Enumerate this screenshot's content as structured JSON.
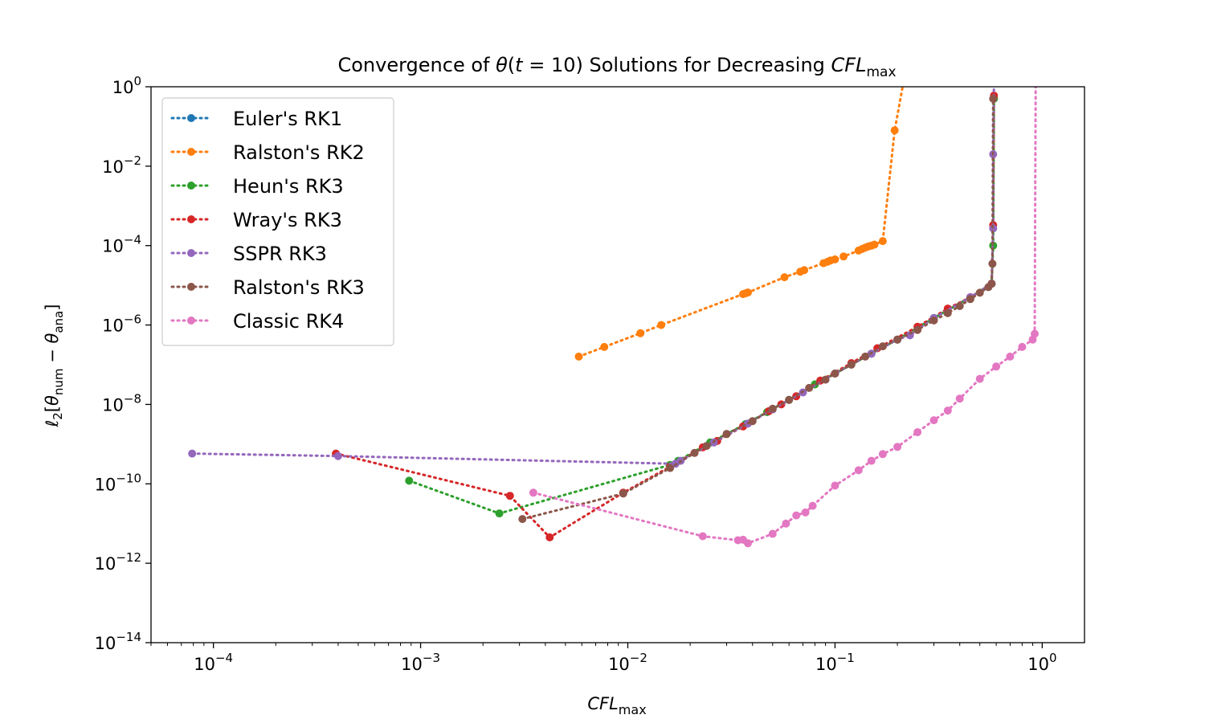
{
  "chart_data": {
    "type": "line",
    "title_parts": {
      "a": "Convergence of ",
      "theta": "θ",
      "b": "(",
      "t": "t",
      "c": " = 10) Solutions for Decreasing ",
      "cfl": "CFL",
      "sub": "max"
    },
    "xlabel_parts": {
      "main": "CFL",
      "sub": "max"
    },
    "ylabel_parts": {
      "l": "ℓ",
      "two": "2",
      "a": "[",
      "theta1": "θ",
      "num": "num",
      "minus": " − ",
      "theta2": "θ",
      "ana": "ana",
      "b": "]"
    },
    "x_scale": "log",
    "y_scale": "log",
    "xlim": [
      5e-05,
      1.6
    ],
    "ylim": [
      1e-14,
      1
    ],
    "x_ticks": [
      {
        "value": 0.0001,
        "base": "10",
        "exp": "−4"
      },
      {
        "value": 0.001,
        "base": "10",
        "exp": "−3"
      },
      {
        "value": 0.01,
        "base": "10",
        "exp": "−2"
      },
      {
        "value": 0.1,
        "base": "10",
        "exp": "−1"
      },
      {
        "value": 1,
        "base": "10",
        "exp": "0"
      }
    ],
    "y_ticks": [
      {
        "value": 1,
        "base": "10",
        "exp": "0"
      },
      {
        "value": 0.01,
        "base": "10",
        "exp": "−2"
      },
      {
        "value": 0.0001,
        "base": "10",
        "exp": "−4"
      },
      {
        "value": 1e-06,
        "base": "10",
        "exp": "−6"
      },
      {
        "value": 1e-08,
        "base": "10",
        "exp": "−8"
      },
      {
        "value": 1e-10,
        "base": "10",
        "exp": "−10"
      },
      {
        "value": 1e-12,
        "base": "10",
        "exp": "−12"
      },
      {
        "value": 1e-14,
        "base": "10",
        "exp": "−14"
      }
    ],
    "grid": false,
    "legend_position": "top-left",
    "series": [
      {
        "name": "Euler's RK1",
        "color": "#1f77b4",
        "points": []
      },
      {
        "name": "Ralston's RK2",
        "color": "#ff7f0e",
        "points": [
          [
            0.0058,
            1.6e-07
          ],
          [
            0.0077,
            2.8e-07
          ],
          [
            0.0115,
            6.2e-07
          ],
          [
            0.0145,
            1e-06
          ],
          [
            0.036,
            6e-06
          ],
          [
            0.037,
            6.3e-06
          ],
          [
            0.038,
            6.6e-06
          ],
          [
            0.057,
            1.6e-05
          ],
          [
            0.068,
            2.2e-05
          ],
          [
            0.071,
            2.4e-05
          ],
          [
            0.088,
            3.6e-05
          ],
          [
            0.092,
            3.9e-05
          ],
          [
            0.095,
            4.2e-05
          ],
          [
            0.1,
            4.5e-05
          ],
          [
            0.11,
            5.3e-05
          ],
          [
            0.13,
            7.5e-05
          ],
          [
            0.135,
            8.2e-05
          ],
          [
            0.14,
            8.9e-05
          ],
          [
            0.145,
            9.5e-05
          ],
          [
            0.15,
            0.0001
          ],
          [
            0.155,
            0.000106
          ],
          [
            0.17,
            0.00013
          ],
          [
            0.194,
            0.08
          ],
          [
            0.215,
            1.5
          ]
        ]
      },
      {
        "name": "Heun's RK3",
        "color": "#2ca02c",
        "points": [
          [
            0.00088,
            1.2e-10
          ],
          [
            0.0024,
            1.8e-11
          ],
          [
            0.016,
            3e-10
          ],
          [
            0.0175,
            3.8e-10
          ],
          [
            0.025,
            1.1e-09
          ],
          [
            0.03,
            1.8e-09
          ],
          [
            0.037,
            3.2e-09
          ],
          [
            0.047,
            6.4e-09
          ],
          [
            0.06,
            1.3e-08
          ],
          [
            0.08,
            3.2e-08
          ],
          [
            0.1,
            6e-08
          ],
          [
            0.15,
            1.9e-07
          ],
          [
            0.2,
            4.3e-07
          ],
          [
            0.3,
            1.5e-06
          ],
          [
            0.45,
            5e-06
          ],
          [
            0.57,
            1.1e-05
          ],
          [
            0.58,
            0.0001
          ],
          [
            0.585,
            0.5
          ]
        ]
      },
      {
        "name": "Wray's RK3",
        "color": "#d62728",
        "points": [
          [
            0.00039,
            5.8e-10
          ],
          [
            0.0027,
            5e-11
          ],
          [
            0.0042,
            4.5e-12
          ],
          [
            0.0095,
            6e-11
          ],
          [
            0.016,
            2.7e-10
          ],
          [
            0.023,
            8.3e-10
          ],
          [
            0.027,
            1.2e-09
          ],
          [
            0.036,
            2.8e-09
          ],
          [
            0.048,
            6.8e-09
          ],
          [
            0.055,
            1e-08
          ],
          [
            0.065,
            1.6e-08
          ],
          [
            0.085,
            4e-08
          ],
          [
            0.12,
            1.1e-07
          ],
          [
            0.16,
            2.6e-07
          ],
          [
            0.25,
            9e-07
          ],
          [
            0.35,
            2.6e-06
          ],
          [
            0.45,
            5e-06
          ],
          [
            0.57,
            1.1e-05
          ],
          [
            0.58,
            0.00033
          ],
          [
            0.585,
            0.6
          ]
        ]
      },
      {
        "name": "SSPR RK3",
        "color": "#9467bd",
        "points": [
          [
            7.9e-05,
            5.8e-10
          ],
          [
            0.0004,
            5e-10
          ],
          [
            0.017,
            3.2e-10
          ],
          [
            0.018,
            3.8e-10
          ],
          [
            0.026,
            1.1e-09
          ],
          [
            0.038,
            3.3e-09
          ],
          [
            0.05,
            7.5e-09
          ],
          [
            0.07,
            2e-08
          ],
          [
            0.1,
            6e-08
          ],
          [
            0.15,
            1.9e-07
          ],
          [
            0.2,
            4.3e-07
          ],
          [
            0.23,
            5.5e-07
          ],
          [
            0.3,
            1.5e-06
          ],
          [
            0.45,
            5e-06
          ],
          [
            0.57,
            1.1e-05
          ],
          [
            0.58,
            0.00027
          ],
          [
            0.58,
            0.02
          ],
          [
            0.585,
            1.5
          ]
        ]
      },
      {
        "name": "Ralston's RK3",
        "color": "#8c564b",
        "points": [
          [
            0.0031,
            1.3e-11
          ],
          [
            0.0095,
            5.7e-11
          ],
          [
            0.016,
            2.5e-10
          ],
          [
            0.021,
            6e-10
          ],
          [
            0.024,
            9e-10
          ],
          [
            0.03,
            1.8e-09
          ],
          [
            0.04,
            3.8e-09
          ],
          [
            0.05,
            7.8e-09
          ],
          [
            0.06,
            1.3e-08
          ],
          [
            0.075,
            2.6e-08
          ],
          [
            0.09,
            4.2e-08
          ],
          [
            0.1,
            6e-08
          ],
          [
            0.12,
            1e-07
          ],
          [
            0.14,
            1.6e-07
          ],
          [
            0.17,
            2.9e-07
          ],
          [
            0.2,
            4.3e-07
          ],
          [
            0.25,
            7.5e-07
          ],
          [
            0.3,
            1.3e-06
          ],
          [
            0.35,
            2e-06
          ],
          [
            0.4,
            3e-06
          ],
          [
            0.45,
            4.5e-06
          ],
          [
            0.5,
            6.5e-06
          ],
          [
            0.55,
            9e-06
          ],
          [
            0.57,
            1.1e-05
          ],
          [
            0.575,
            3.5e-05
          ],
          [
            0.58,
            0.5
          ]
        ]
      },
      {
        "name": "Classic RK4",
        "color": "#e377c2",
        "points": [
          [
            0.0035,
            6e-11
          ],
          [
            0.023,
            4.8e-12
          ],
          [
            0.034,
            3.8e-12
          ],
          [
            0.036,
            3.9e-12
          ],
          [
            0.038,
            3.2e-12
          ],
          [
            0.05,
            5.5e-12
          ],
          [
            0.058,
            1e-11
          ],
          [
            0.065,
            1.6e-11
          ],
          [
            0.072,
            1.9e-11
          ],
          [
            0.078,
            2.8e-11
          ],
          [
            0.1,
            9e-11
          ],
          [
            0.13,
            2.2e-10
          ],
          [
            0.15,
            3.8e-10
          ],
          [
            0.17,
            5.6e-10
          ],
          [
            0.2,
            8.5e-10
          ],
          [
            0.25,
            2e-09
          ],
          [
            0.3,
            4e-09
          ],
          [
            0.35,
            7e-09
          ],
          [
            0.4,
            1.4e-08
          ],
          [
            0.5,
            4.4e-08
          ],
          [
            0.6,
            9e-08
          ],
          [
            0.7,
            1.6e-07
          ],
          [
            0.8,
            2.8e-07
          ],
          [
            0.9,
            4.3e-07
          ],
          [
            0.92,
            6e-07
          ],
          [
            0.93,
            1.2
          ]
        ]
      }
    ]
  }
}
